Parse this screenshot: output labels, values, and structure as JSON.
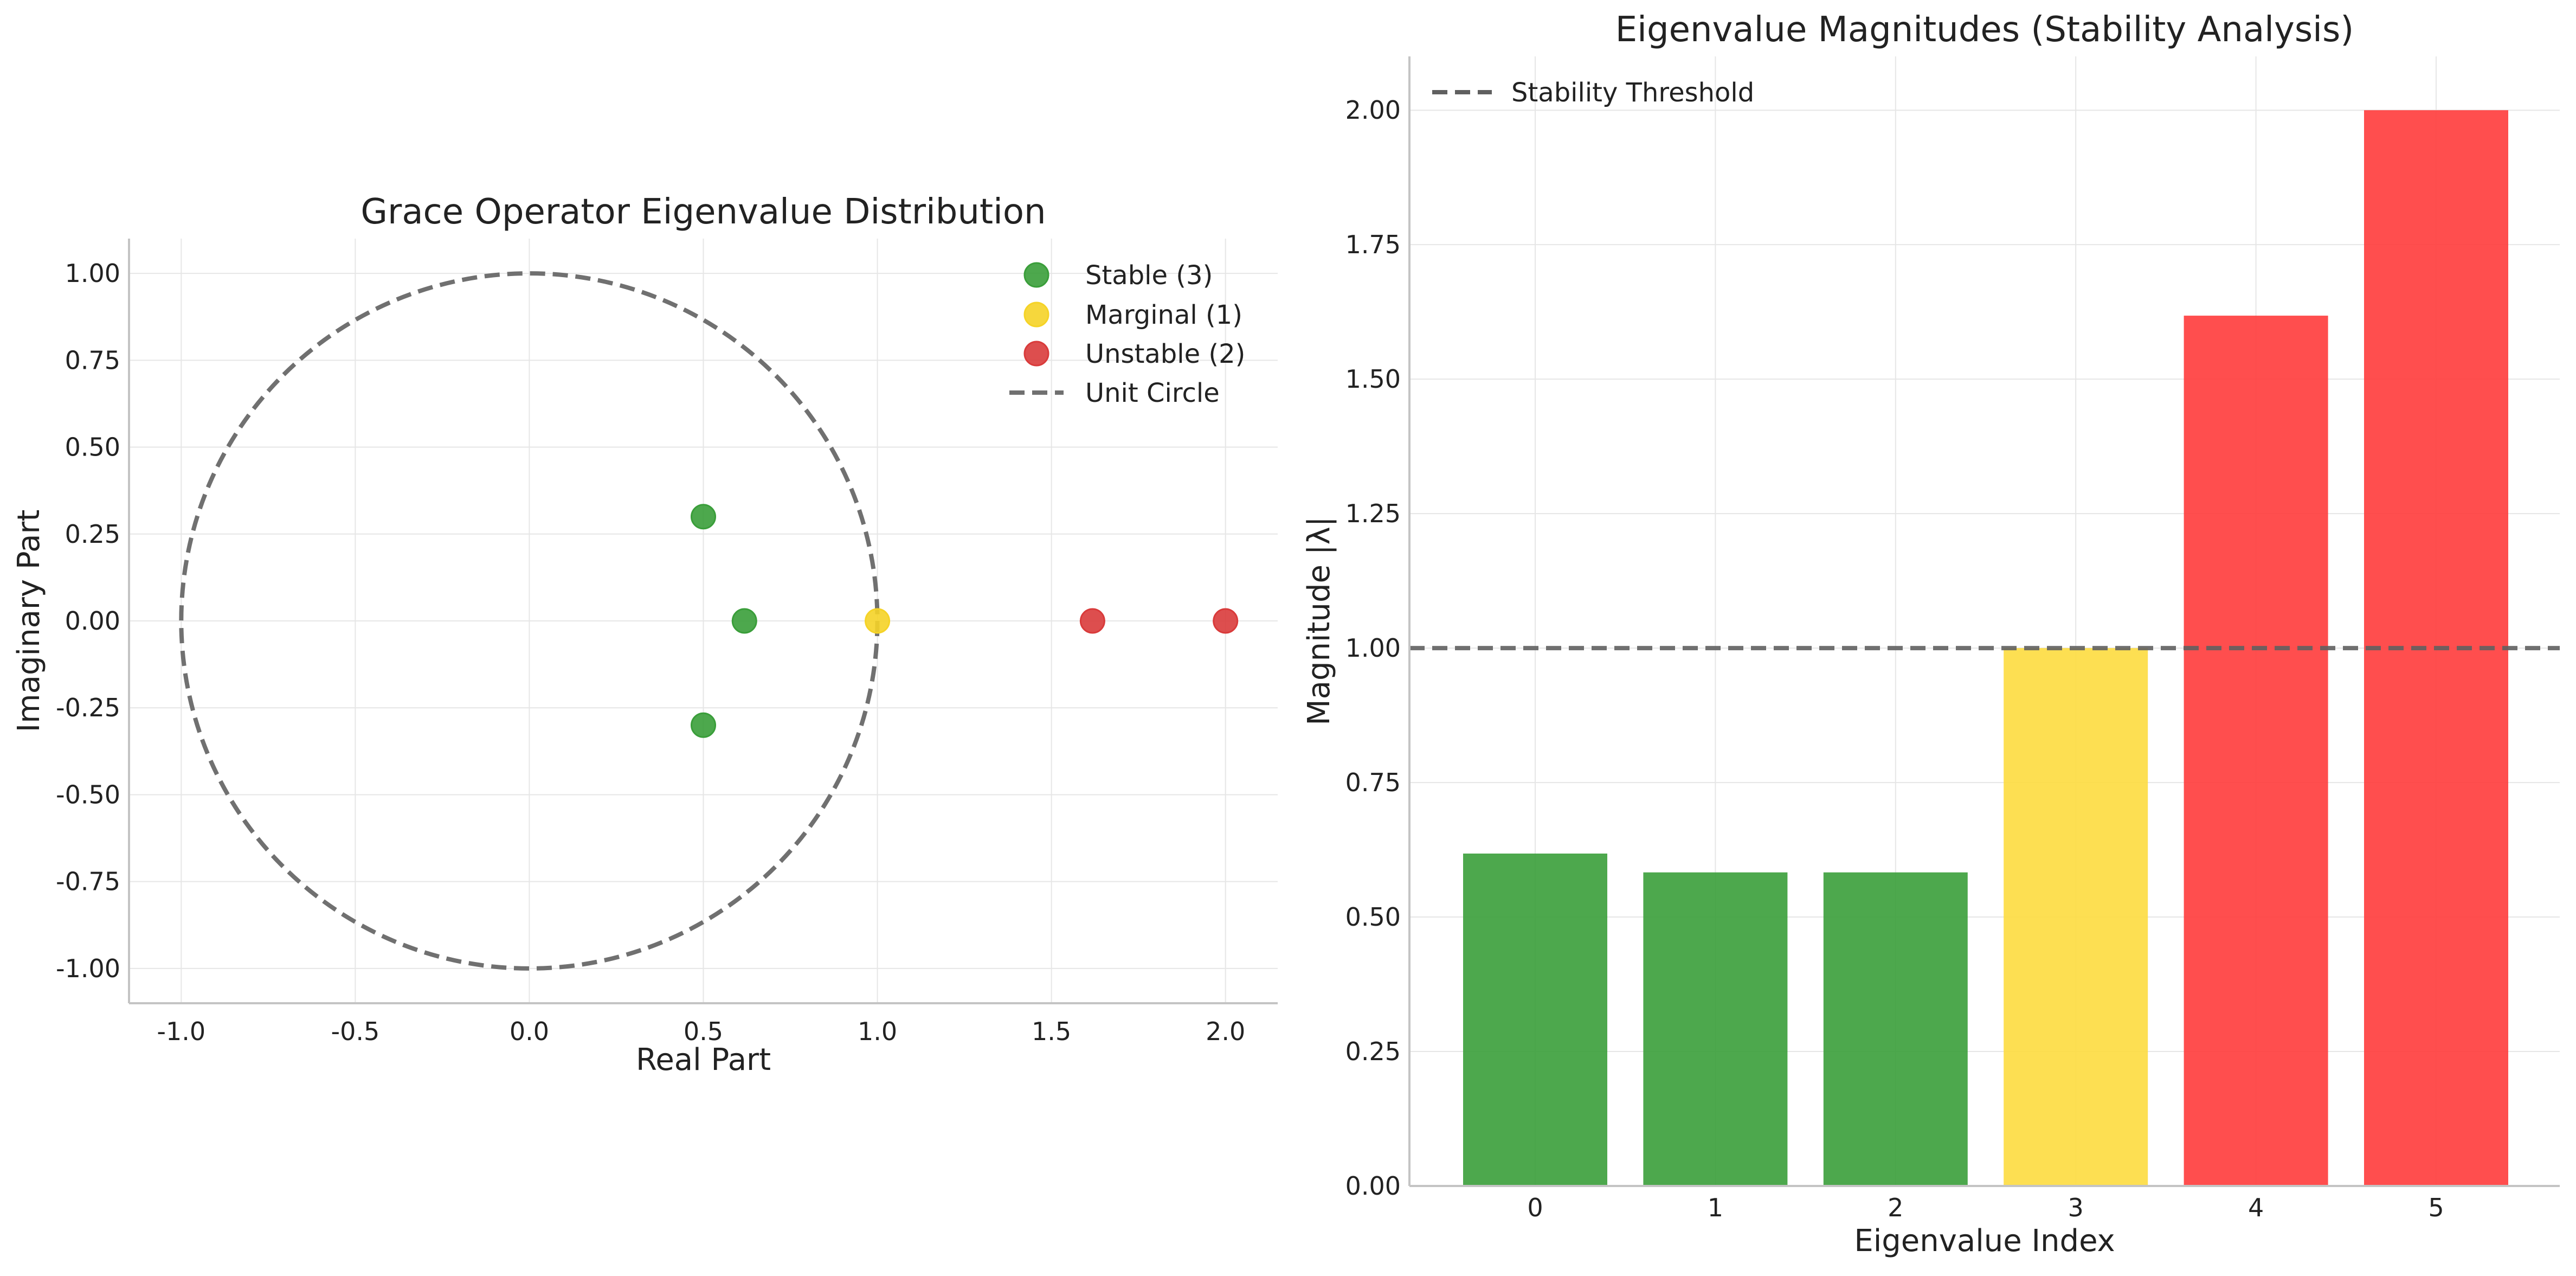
{
  "chart_data": [
    {
      "type": "scatter",
      "title": "Grace Operator Eigenvalue Distribution",
      "xlabel": "Real Part",
      "ylabel": "Imaginary Part",
      "xlim": [
        -1.15,
        2.15
      ],
      "ylim": [
        -1.1,
        1.1
      ],
      "xticks": [
        -1.0,
        -0.5,
        0.0,
        0.5,
        1.0,
        1.5,
        2.0
      ],
      "xtick_labels": [
        "-1.0",
        "-0.5",
        "0.0",
        "0.5",
        "1.0",
        "1.5",
        "2.0"
      ],
      "yticks": [
        1.0,
        0.75,
        0.5,
        0.25,
        0.0,
        -0.25,
        -0.5,
        -0.75,
        -1.0
      ],
      "ytick_labels": [
        "1.00",
        "0.75",
        "0.50",
        "0.25",
        "0.00",
        "-0.25",
        "-0.50",
        "-0.75",
        "-1.00"
      ],
      "grid": true,
      "legend_position": "top-right",
      "series": [
        {
          "name": "Stable (3)",
          "color": "#3a9e3a",
          "points": [
            {
              "x": 0.5,
              "y": 0.3
            },
            {
              "x": 0.618,
              "y": 0.0
            },
            {
              "x": 0.5,
              "y": -0.3
            }
          ]
        },
        {
          "name": "Marginal (1)",
          "color": "#f5d327",
          "points": [
            {
              "x": 1.0,
              "y": 0.0
            }
          ]
        },
        {
          "name": "Unstable (2)",
          "color": "#d93b3b",
          "points": [
            {
              "x": 1.618,
              "y": 0.0
            },
            {
              "x": 2.0,
              "y": 0.0
            }
          ]
        }
      ],
      "reference_line": {
        "name": "Unit Circle",
        "shape": "circle",
        "radius": 1.0,
        "style": "dashed",
        "color": "#707070"
      }
    },
    {
      "type": "bar",
      "title": "Eigenvalue Magnitudes (Stability Analysis)",
      "xlabel": "Eigenvalue Index",
      "ylabel": "Magnitude |λ|",
      "categories": [
        "0",
        "1",
        "2",
        "3",
        "4",
        "5"
      ],
      "values": [
        0.618,
        0.583,
        0.583,
        1.0,
        1.618,
        2.0
      ],
      "colors": [
        "#3a9e3a",
        "#3a9e3a",
        "#3a9e3a",
        "#fddc3f",
        "#ff3b3b",
        "#ff3b3b"
      ],
      "ylim": [
        0,
        2.1
      ],
      "yticks": [
        0.0,
        0.25,
        0.5,
        0.75,
        1.0,
        1.25,
        1.5,
        1.75,
        2.0
      ],
      "ytick_labels": [
        "0.00",
        "0.25",
        "0.50",
        "0.75",
        "1.00",
        "1.25",
        "1.50",
        "1.75",
        "2.00"
      ],
      "grid": true,
      "legend_position": "top-left",
      "threshold": {
        "name": "Stability Threshold",
        "value": 1.0,
        "style": "dashed",
        "color": "#606060"
      }
    }
  ]
}
